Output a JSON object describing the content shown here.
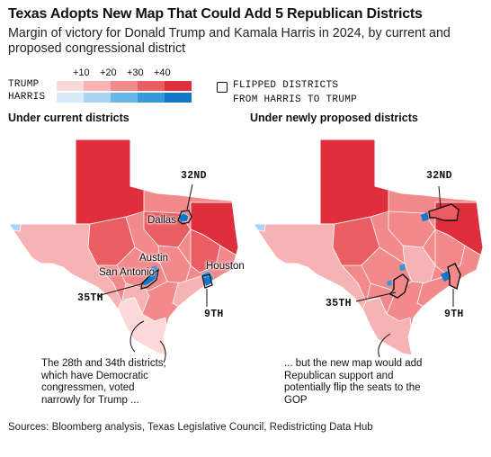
{
  "title": "Texas Adopts New Map That Could Add 5 Republican Districts",
  "subtitle": "Margin of victory for Donald Trump and Kamala Harris in 2024, by current and proposed congressional district",
  "legend": {
    "trump_label": "TRUMP",
    "harris_label": "HARRIS",
    "ticks": [
      "+10",
      "+20",
      "+30",
      "+40"
    ],
    "trump_colors": [
      "#fbd9d9",
      "#f7b2b3",
      "#f28a8c",
      "#ea5d63",
      "#df2f3d"
    ],
    "harris_colors": [
      "#d8ebf8",
      "#a9d4f3",
      "#6ab8ea",
      "#3799dc",
      "#1178c8"
    ],
    "flipped_line1": "FLIPPED DISTRICTS",
    "flipped_line2": "FROM HARRIS TO TRUMP"
  },
  "maps": {
    "current": {
      "title": "Under current districts",
      "cities": [
        "Dallas",
        "Austin",
        "San Antonio",
        "Houston"
      ],
      "districts": [
        "32ND",
        "35TH",
        "9TH"
      ],
      "annotation": "The 28th and 34th districts, which have Democratic congressmen, voted narrowly for Trump ..."
    },
    "proposed": {
      "title": "Under newly proposed districts",
      "districts": [
        "32ND",
        "35TH",
        "9TH"
      ],
      "annotation": "... but the new map would add Republican support and potentially flip the seats to the GOP"
    }
  },
  "source": "Sources: Bloomberg analysis, Texas Legislative Council, Redistricting Data Hub"
}
